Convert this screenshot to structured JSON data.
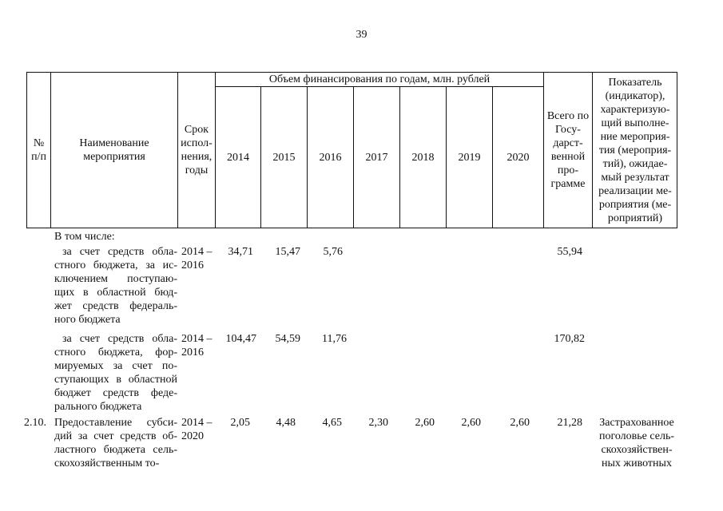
{
  "page_number": "39",
  "header": {
    "no": "№ п/п",
    "name": "Наименование мероприятия",
    "term": "Срок испол-нения, годы",
    "funding_group": "Объем финансирования по годам, млн. рублей",
    "years": [
      "2014",
      "2015",
      "2016",
      "2017",
      "2018",
      "2019",
      "2020"
    ],
    "total": "Всего по Госу-дарст-венной про-грамме",
    "indicator": "Показатель (индикатор), характеризую-щий выполне-ние мероприя-тия (мероприя-тий), ожидае-мый результат реализации ме-роприятия (ме-роприятий)"
  },
  "rows": [
    {
      "no": "",
      "name": "В том числе:",
      "term": "",
      "values": [
        "",
        "",
        "",
        "",
        "",
        "",
        ""
      ],
      "total": "",
      "indicator": ""
    },
    {
      "no": "",
      "name": "за счет средств обла-стного бюджета, за ис-ключением поступаю-щих в областной бюд-жет средств федераль-ного бюджета",
      "term": "2014 – 2016",
      "values": [
        "34,71",
        "15,47",
        "5,76",
        "",
        "",
        "",
        ""
      ],
      "total": "55,94",
      "indicator": ""
    },
    {
      "no": "",
      "name": "за счет средств обла-стного бюджета, фор-мируемых за счет по-ступающих в областной бюджет средств феде-рального бюджета",
      "term": "2014 – 2016",
      "values": [
        "104,47",
        "54,59",
        "11,76",
        "",
        "",
        "",
        ""
      ],
      "total": "170,82",
      "indicator": ""
    },
    {
      "no": "2.10.",
      "name": "Предоставление субси-дий за счет средств об-ластного бюджета сель-скохозяйственным то-",
      "term": "2014 – 2020",
      "values": [
        "2,05",
        "4,48",
        "4,65",
        "2,30",
        "2,60",
        "2,60",
        "2,60"
      ],
      "total": "21,28",
      "indicator": "Застрахованное поголовье сель-скохозяйствен-ных животных"
    }
  ]
}
